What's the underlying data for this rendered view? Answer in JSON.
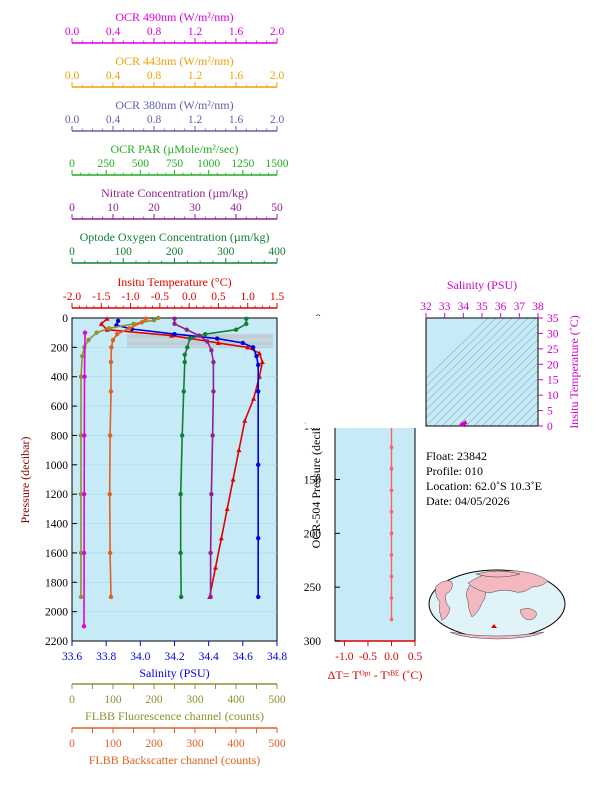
{
  "top_axes": [
    {
      "label": "OCR 490nm (W/m²/nm)",
      "color": "#e000e0",
      "ticks": [
        "0.0",
        "0.4",
        "0.8",
        "1.2",
        "1.6",
        "2.0"
      ]
    },
    {
      "label": "OCR 443nm (W/m²/nm)",
      "color": "#f0a000",
      "ticks": [
        "0.0",
        "0.4",
        "0.8",
        "1.2",
        "1.6",
        "2.0"
      ]
    },
    {
      "label": "OCR 380nm (W/m²/nm)",
      "color": "#6060b0",
      "ticks": [
        "0.0",
        "0.4",
        "0.8",
        "1.2",
        "1.6",
        "2.0"
      ]
    },
    {
      "label": "OCR PAR (µMole/m²/sec)",
      "color": "#20b020",
      "ticks": [
        "0",
        "250",
        "500",
        "750",
        "1000",
        "1250",
        "1500"
      ]
    },
    {
      "label": "Nitrate Concentration (µm/kg)",
      "color": "#902090",
      "ticks": [
        "0",
        "10",
        "20",
        "30",
        "40",
        "50"
      ]
    },
    {
      "label": "Optode Oxygen Concentration (µm/kg)",
      "color": "#108030",
      "ticks": [
        "0",
        "100",
        "200",
        "300",
        "400"
      ]
    },
    {
      "label": "Insitu Temperature (°C)",
      "color": "#e00000",
      "ticks": [
        "-2.0",
        "-1.5",
        "-1.0",
        "-0.5",
        "0.0",
        "0.5",
        "1.0",
        "1.5"
      ]
    }
  ],
  "bottom_axes": [
    {
      "label": "Salinity (PSU)",
      "color": "#0000dd",
      "ticks": [
        "33.6",
        "33.8",
        "34.0",
        "34.2",
        "34.4",
        "34.6",
        "34.8"
      ]
    },
    {
      "label": "FLBB Fluorescence channel (counts)",
      "color": "#909030",
      "ticks": [
        "0",
        "50",
        "100",
        "150",
        "200",
        "250",
        "300",
        "350",
        "400",
        "450",
        "500"
      ]
    },
    {
      "label": "FLBB Backscatter channel (counts)",
      "color": "#e06020",
      "ticks": [
        "0",
        "50",
        "100",
        "150",
        "200",
        "250",
        "300",
        "350",
        "400",
        "450",
        "500"
      ]
    }
  ],
  "main_y": {
    "label": "Pressure (decibar)",
    "ticks": [
      "0",
      "200",
      "400",
      "600",
      "800",
      "1000",
      "1200",
      "1400",
      "1600",
      "1800",
      "2000",
      "2200"
    ]
  },
  "ocr_y": {
    "label": "OCR-504 Pressure (decibar)",
    "ticks": [
      "0",
      "50",
      "100",
      "150",
      "200",
      "250",
      "300"
    ]
  },
  "dt_axis": {
    "label": "ΔT= Tᴼᵖᵗ - Tˢᴮᴱ (˚C)",
    "ticks": [
      "-1.0",
      "-0.5",
      "0.0",
      "0.5"
    ],
    "color": "#e00000"
  },
  "ts_axes": {
    "x_label": "Salinity (PSU)",
    "x_ticks": [
      "32",
      "33",
      "34",
      "35",
      "36",
      "37",
      "38"
    ],
    "y_label": "Insitu Temperature (˚C)",
    "y_ticks": [
      "0",
      "5",
      "10",
      "15",
      "20",
      "25",
      "30",
      "35"
    ],
    "color": "#cc00cc"
  },
  "info": {
    "float": "Float:  23842",
    "profile": "Profile:  010",
    "location": "Location:  62.0˚S  10.3˚E",
    "date": "Date:  04/05/2026"
  },
  "chart_data": [
    {
      "type": "line",
      "title": "",
      "ylabel": "Pressure (decibar)",
      "ylim": [
        2200,
        0
      ],
      "series": [
        {
          "name": "Insitu Temperature (°C)",
          "color": "#e00000",
          "points": [
            [
              -1.4,
              5
            ],
            [
              -1.5,
              40
            ],
            [
              -1.4,
              80
            ],
            [
              -0.3,
              120
            ],
            [
              0.5,
              170
            ],
            [
              1.0,
              200
            ],
            [
              1.2,
              240
            ],
            [
              1.25,
              300
            ],
            [
              1.2,
              400
            ],
            [
              1.1,
              550
            ],
            [
              0.95,
              700
            ],
            [
              0.85,
              900
            ],
            [
              0.75,
              1100
            ],
            [
              0.65,
              1300
            ],
            [
              0.55,
              1500
            ],
            [
              0.45,
              1700
            ],
            [
              0.35,
              1900
            ]
          ]
        },
        {
          "name": "Salinity (PSU)",
          "color": "#0000dd",
          "points": [
            [
              33.87,
              20
            ],
            [
              33.86,
              50
            ],
            [
              33.95,
              75
            ],
            [
              34.2,
              110
            ],
            [
              34.45,
              140
            ],
            [
              34.6,
              170
            ],
            [
              34.66,
              200
            ],
            [
              34.68,
              260
            ],
            [
              34.69,
              320
            ],
            [
              34.69,
              500
            ],
            [
              34.69,
              1000
            ],
            [
              34.69,
              1500
            ],
            [
              34.69,
              1900
            ]
          ]
        },
        {
          "name": "Optode Oxygen Concentration (µm/kg)",
          "color": "#108030",
          "points": [
            [
              340,
              5
            ],
            [
              340,
              40
            ],
            [
              320,
              80
            ],
            [
              260,
              110
            ],
            [
              230,
              140
            ],
            [
              225,
              200
            ],
            [
              220,
              250
            ],
            [
              220,
              300
            ],
            [
              218,
              500
            ],
            [
              215,
              800
            ],
            [
              212,
              1200
            ],
            [
              212,
              1600
            ],
            [
              213,
              1900
            ]
          ]
        },
        {
          "name": "Nitrate Concentration (µm/kg)",
          "color": "#902090",
          "points": [
            [
              25,
              5
            ],
            [
              25,
              40
            ],
            [
              28,
              80
            ],
            [
              31,
              120
            ],
            [
              33,
              160
            ],
            [
              34,
              220
            ],
            [
              34.5,
              300
            ],
            [
              34.5,
              500
            ],
            [
              34.3,
              800
            ],
            [
              34,
              1200
            ],
            [
              33.8,
              1600
            ],
            [
              33.8,
              1900
            ]
          ]
        },
        {
          "name": "FLBB Fluorescence channel (counts)",
          "color": "#909030",
          "points": [
            [
              210,
              0
            ],
            [
              200,
              15
            ],
            [
              150,
              40
            ],
            [
              90,
              70
            ],
            [
              60,
              100
            ],
            [
              40,
              150
            ],
            [
              30,
              200
            ],
            [
              25,
              260
            ],
            [
              22,
              400
            ],
            [
              22,
              800
            ],
            [
              22,
              1200
            ],
            [
              22,
              1600
            ],
            [
              22,
              1900
            ]
          ]
        },
        {
          "name": "FLBB Backscatter channel (counts)",
          "color": "#e06020",
          "points": [
            [
              180,
              5
            ],
            [
              170,
              30
            ],
            [
              140,
              70
            ],
            [
              110,
              110
            ],
            [
              100,
              150
            ],
            [
              96,
              200
            ],
            [
              95,
              300
            ],
            [
              95,
              500
            ],
            [
              93,
              800
            ],
            [
              92,
              1200
            ],
            [
              93,
              1600
            ],
            [
              95,
              1900
            ]
          ]
        },
        {
          "name": "OCR PAR (µMole/m²/sec)",
          "color": "#e000e0",
          "points": [
            [
              0.1,
              100
            ],
            [
              0.05,
              400
            ],
            [
              0.03,
              800
            ],
            [
              0.02,
              1200
            ],
            [
              0.01,
              1600
            ],
            [
              0.0,
              2100
            ]
          ]
        }
      ]
    },
    {
      "type": "line",
      "title": "",
      "xlabel": "ΔT= Tᴼᵖᵗ - Tˢᴮᴱ (˚C)",
      "ylabel": "OCR-504 Pressure (decibar)",
      "xlim": [
        -1.2,
        0.5
      ],
      "ylim": [
        300,
        0
      ],
      "series": [
        {
          "name": "",
          "color": "#ff6060",
          "points": [
            [
              -0.05,
              2
            ],
            [
              0.0,
              6
            ],
            [
              -0.02,
              12
            ],
            [
              0.0,
              16
            ],
            [
              0.02,
              20
            ],
            [
              0.05,
              24
            ],
            [
              0.0,
              28
            ],
            [
              0.0,
              40
            ],
            [
              0.0,
              60
            ],
            [
              0.0,
              80
            ],
            [
              0.0,
              100
            ],
            [
              0.0,
              120
            ],
            [
              0.0,
              140
            ],
            [
              0.0,
              160
            ],
            [
              0.0,
              180
            ],
            [
              0.0,
              200
            ],
            [
              0.0,
              220
            ],
            [
              0.0,
              240
            ],
            [
              0.0,
              260
            ],
            [
              0.0,
              280
            ]
          ]
        }
      ]
    },
    {
      "type": "scatter",
      "title": "",
      "xlabel": "Salinity (PSU)",
      "ylabel": "Insitu Temperature (˚C)",
      "xlim": [
        32,
        38
      ],
      "ylim": [
        0,
        35
      ],
      "series": [
        {
          "name": "",
          "color": "#cc00cc",
          "points": [
            [
              34.0,
              0.8
            ],
            [
              34.1,
              1.2
            ],
            [
              33.9,
              0.6
            ]
          ]
        }
      ]
    }
  ]
}
